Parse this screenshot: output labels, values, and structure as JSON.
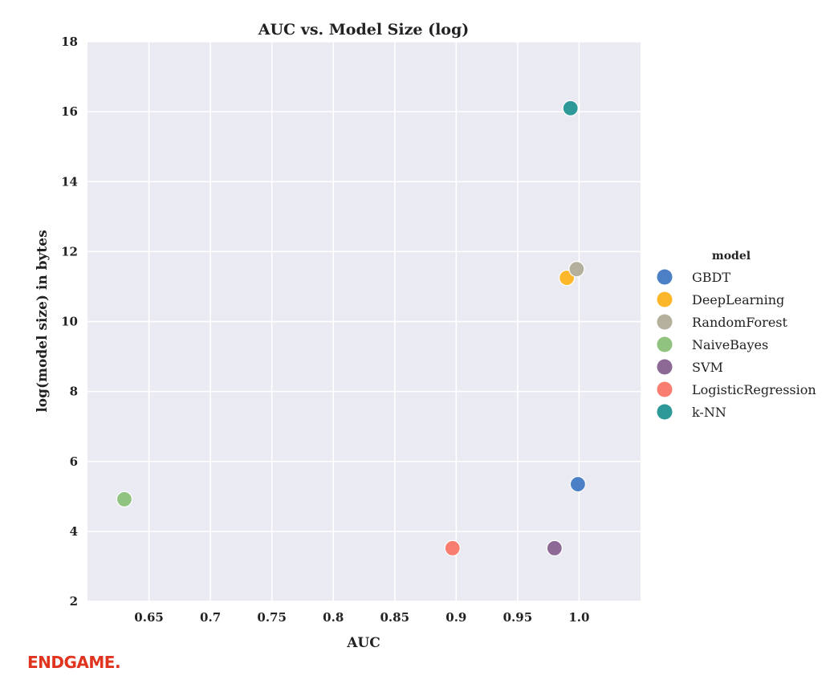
{
  "brand": {
    "logo_text": "ENDGAME.",
    "logo_color": "#e0341f"
  },
  "chart_data": {
    "type": "scatter",
    "title": "AUC vs. Model Size (log)",
    "xlabel": "AUC",
    "ylabel": "log(model size) in bytes",
    "xlim": [
      0.6,
      1.05
    ],
    "ylim": [
      2,
      18
    ],
    "xticks": [
      0.65,
      0.7,
      0.75,
      0.8,
      0.85,
      0.9,
      0.95,
      1.0
    ],
    "xtick_labels": [
      "0.65",
      "0.7",
      "0.75",
      "0.8",
      "0.85",
      "0.9",
      "0.95",
      "1.0"
    ],
    "yticks": [
      2,
      4,
      6,
      8,
      10,
      12,
      14,
      16,
      18
    ],
    "ytick_labels": [
      "2",
      "4",
      "6",
      "8",
      "10",
      "12",
      "14",
      "16",
      "18"
    ],
    "grid": true,
    "background_color": "#eaeaf2",
    "grid_color": "#ffffff",
    "legend": {
      "title": "model",
      "placement": "outside-right"
    },
    "series": [
      {
        "name": "GBDT",
        "color": "#4c80c6",
        "x": [
          0.999
        ],
        "y": [
          5.35
        ]
      },
      {
        "name": "DeepLearning",
        "color": "#fdb72a",
        "x": [
          0.99
        ],
        "y": [
          11.25
        ]
      },
      {
        "name": "RandomForest",
        "color": "#b5b09d",
        "x": [
          0.998
        ],
        "y": [
          11.5
        ]
      },
      {
        "name": "NaiveBayes",
        "color": "#8fc37f",
        "x": [
          0.63
        ],
        "y": [
          4.92
        ]
      },
      {
        "name": "SVM",
        "color": "#8d6a96",
        "x": [
          0.98
        ],
        "y": [
          3.52
        ]
      },
      {
        "name": "LogisticRegression",
        "color": "#f97e70",
        "x": [
          0.897
        ],
        "y": [
          3.52
        ]
      },
      {
        "name": "k-NN",
        "color": "#2d9999",
        "x": [
          0.993
        ],
        "y": [
          16.1
        ]
      }
    ]
  }
}
